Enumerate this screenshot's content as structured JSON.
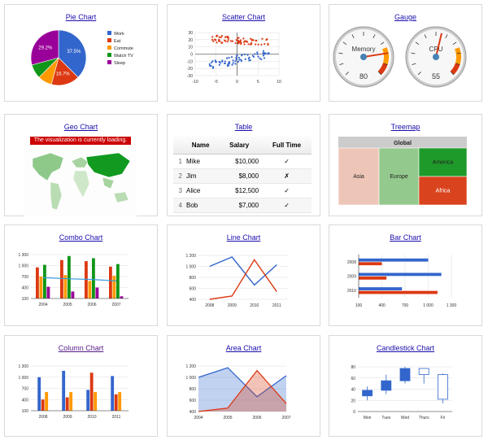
{
  "charts": [
    {
      "id": "pie",
      "title": "Pie Chart",
      "type": "pie",
      "slices": [
        {
          "label": "Work",
          "value": 37.5,
          "color": "#3366cc",
          "label_text": "37.5%"
        },
        {
          "label": "Eat",
          "value": 16.7,
          "color": "#dc3912",
          "label_text": "16.7%"
        },
        {
          "label": "Commute",
          "value": 8.3,
          "color": "#ff9900",
          "label_text": ""
        },
        {
          "label": "Watch TV",
          "value": 8.3,
          "color": "#109618",
          "label_text": ""
        },
        {
          "label": "Sleep",
          "value": 29.2,
          "color": "#990099",
          "label_text": "29.2%"
        }
      ]
    },
    {
      "id": "scatter",
      "title": "Scatter Chart",
      "type": "scatter",
      "xlim": [
        -10,
        10
      ],
      "ylim": [
        -30,
        30
      ],
      "xticks": [
        "-10",
        "-5",
        "0",
        "5",
        "10"
      ],
      "yticks": [
        "30",
        "20",
        "10",
        "0",
        "-10",
        "-20",
        "-30"
      ]
    },
    {
      "id": "gauge",
      "title": "Gauge",
      "type": "gauge",
      "gauges": [
        {
          "label": "Memory",
          "value": 80
        },
        {
          "label": "CPU",
          "value": 55
        }
      ]
    },
    {
      "id": "geo",
      "title": "Geo Chart",
      "type": "map",
      "message": "The visualization is currently loading."
    },
    {
      "id": "table",
      "title": "Table",
      "type": "table",
      "columns": [
        "Name",
        "Salary",
        "Full Time"
      ],
      "rows": [
        {
          "n": "1",
          "name": "Mike",
          "salary": "$10,000",
          "ft": "✓"
        },
        {
          "n": "2",
          "name": "Jim",
          "salary": "$8,000",
          "ft": "✗"
        },
        {
          "n": "3",
          "name": "Alice",
          "salary": "$12,500",
          "ft": "✓"
        },
        {
          "n": "4",
          "name": "Bob",
          "salary": "$7,000",
          "ft": "✓"
        }
      ]
    },
    {
      "id": "treemap",
      "title": "Treemap",
      "type": "treemap",
      "root": "Global",
      "nodes": [
        {
          "label": "Asia",
          "color": "#eec6b8"
        },
        {
          "label": "Europe",
          "color": "#93c98d"
        },
        {
          "label": "America",
          "color": "#1e9a2b"
        },
        {
          "label": "Africa",
          "color": "#d9431e"
        }
      ]
    },
    {
      "id": "combo",
      "title": "Combo Chart",
      "type": "bar",
      "categories": [
        "2004",
        "2005",
        "2006",
        "2007"
      ],
      "ylim": [
        100,
        1300
      ],
      "yticks": [
        "1 300",
        "1 000",
        "700",
        "400",
        "100"
      ],
      "series": [
        {
          "values": [
            950,
            1150,
            1120,
            970
          ],
          "color": "#dc3912"
        },
        {
          "values": [
            700,
            740,
            580,
            720
          ],
          "color": "#ff9900"
        },
        {
          "values": [
            1020,
            1260,
            1200,
            1040
          ],
          "color": "#109618"
        },
        {
          "values": [
            420,
            290,
            400,
            160
          ],
          "color": "#990099"
        }
      ],
      "line": {
        "values": [
          670,
          640,
          620,
          580
        ],
        "color": "#3399dd"
      }
    },
    {
      "id": "line",
      "title": "Line Chart",
      "type": "line",
      "categories": [
        "2008",
        "2009",
        "2010",
        "2011"
      ],
      "ylim": [
        400,
        1200
      ],
      "yticks": [
        "1 200",
        "1 000",
        "800",
        "600",
        "400"
      ],
      "series": [
        {
          "values": [
            1000,
            1170,
            660,
            1030
          ],
          "color": "#3366cc"
        },
        {
          "values": [
            400,
            460,
            1120,
            540
          ],
          "color": "#dc3912"
        }
      ]
    },
    {
      "id": "barchart",
      "title": "Bar Chart",
      "type": "bar",
      "categories": [
        "2008",
        "2009",
        "2010"
      ],
      "xlim": [
        100,
        1300
      ],
      "xticks": [
        "100",
        "400",
        "700",
        "1 000",
        "1 300"
      ],
      "series": [
        {
          "values": [
            1000,
            1170,
            660
          ],
          "color": "#3366cc"
        },
        {
          "values": [
            400,
            460,
            1120
          ],
          "color": "#dc3912"
        }
      ]
    },
    {
      "id": "column",
      "title": "Column Chart",
      "type": "bar",
      "categories": [
        "2008",
        "2009",
        "2010",
        "2011"
      ],
      "ylim": [
        100,
        1300
      ],
      "yticks": [
        "1 300",
        "1 000",
        "700",
        "400",
        "100"
      ],
      "series": [
        {
          "values": [
            1000,
            1170,
            660,
            1030
          ],
          "color": "#3366cc"
        },
        {
          "values": [
            400,
            460,
            1120,
            540
          ],
          "color": "#dc3912"
        },
        {
          "values": [
            600,
            600,
            600,
            600
          ],
          "color": "#ff9900"
        }
      ]
    },
    {
      "id": "area",
      "title": "Area Chart",
      "type": "area",
      "categories": [
        "2004",
        "2005",
        "2006",
        "2007"
      ],
      "ylim": [
        400,
        1200
      ],
      "yticks": [
        "1 200",
        "1 000",
        "800",
        "600",
        "400"
      ],
      "series": [
        {
          "values": [
            1000,
            1170,
            660,
            1030
          ],
          "color": "#3366cc"
        },
        {
          "values": [
            400,
            460,
            1120,
            540
          ],
          "color": "#dc3912"
        }
      ]
    },
    {
      "id": "candle",
      "title": "Candlestick Chart",
      "type": "candlestick",
      "categories": [
        "Mon",
        "Tues",
        "Wed",
        "Thurs",
        "Fri"
      ],
      "ylim": [
        0,
        80
      ],
      "yticks": [
        "80",
        "60",
        "40",
        "20",
        "0"
      ],
      "candles": [
        {
          "low": 20,
          "open": 28,
          "close": 38,
          "high": 45
        },
        {
          "low": 31,
          "open": 38,
          "close": 55,
          "high": 66
        },
        {
          "low": 50,
          "open": 55,
          "close": 77,
          "high": 80
        },
        {
          "low": 50,
          "open": 77,
          "close": 66,
          "high": 77
        },
        {
          "low": 15,
          "open": 66,
          "close": 22,
          "high": 68
        }
      ]
    }
  ]
}
